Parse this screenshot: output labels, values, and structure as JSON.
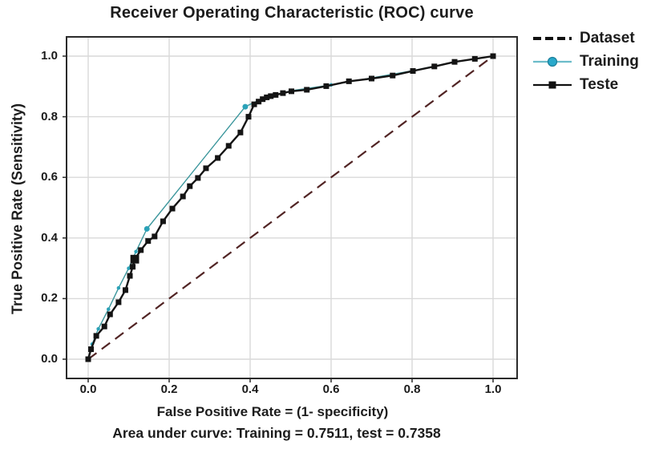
{
  "title": "Receiver Operating Characteristic (ROC) curve",
  "caption": "Area under curve: Training = 0.7511, test = 0.7358",
  "axes": {
    "xlabel": "False Positive Rate = (1- specificity)",
    "ylabel": "True Positive Rate (Sensitivity)",
    "x_ticks": [
      "0.0",
      "0.2",
      "0.4",
      "0.6",
      "0.8",
      "1.0"
    ],
    "x_tick_values": [
      0,
      0.2,
      0.4,
      0.6,
      0.8,
      1.0
    ],
    "y_ticks": [
      "0.0",
      "0.2",
      "0.4",
      "0.6",
      "0.8",
      "1.0"
    ],
    "y_tick_values": [
      0,
      0.2,
      0.4,
      0.6,
      0.8,
      1.0
    ],
    "grid_color": "#d9d9d9",
    "spine_color": "#2b2b2b"
  },
  "legend": {
    "items": [
      {
        "label": "Dataset",
        "swatch": "dashed",
        "line_color": "#111111"
      },
      {
        "label": "Training",
        "swatch": "circle",
        "line_color": "#6bbcca",
        "marker_fill": "#29a9cb",
        "marker_stroke": "#1d7f9a"
      },
      {
        "label": "Teste",
        "swatch": "square",
        "line_color": "#111111",
        "marker_fill": "#111111"
      }
    ]
  },
  "chart_data": {
    "type": "line",
    "title": "Receiver Operating Characteristic (ROC) curve",
    "xlabel": "False Positive Rate = (1- specificity)",
    "ylabel": "True Positive Rate (Sensitivity)",
    "xlim": [
      -0.05,
      1.06
    ],
    "ylim": [
      -0.06,
      1.06
    ],
    "grid": true,
    "legend_position": "top-right",
    "auc": {
      "training": 0.7511,
      "test": 0.7358
    },
    "series": [
      {
        "name": "Dataset",
        "color": "#512424",
        "width": 2.2,
        "dash": "13 8",
        "marker": "none",
        "points": [
          [
            0,
            0
          ],
          [
            1,
            1
          ]
        ]
      },
      {
        "name": "Training",
        "color": "#3b969c",
        "width": 1.4,
        "marker": "circle",
        "marker_size": 4.5,
        "marker_fill": "#2ba2b8",
        "emphasis": [
          7,
          8
        ],
        "points": [
          [
            0.0,
            0.0
          ],
          [
            0.01,
            0.05
          ],
          [
            0.025,
            0.1
          ],
          [
            0.05,
            0.165
          ],
          [
            0.075,
            0.235
          ],
          [
            0.1,
            0.3
          ],
          [
            0.118,
            0.355
          ],
          [
            0.145,
            0.43
          ],
          [
            0.388,
            0.833
          ],
          [
            0.43,
            0.86
          ],
          [
            0.465,
            0.873
          ],
          [
            0.502,
            0.886
          ],
          [
            0.6,
            0.905
          ],
          [
            0.7,
            0.928
          ],
          [
            0.802,
            0.952
          ],
          [
            0.905,
            0.981
          ],
          [
            1.0,
            1.0
          ]
        ]
      },
      {
        "name": "Teste",
        "color": "#141414",
        "width": 2.4,
        "marker": "square",
        "marker_size": 7,
        "marker_fill": "#141414",
        "emphasis": [
          9
        ],
        "points": [
          [
            0.0,
            0.0
          ],
          [
            0.007,
            0.033
          ],
          [
            0.02,
            0.077
          ],
          [
            0.04,
            0.108
          ],
          [
            0.054,
            0.148
          ],
          [
            0.075,
            0.188
          ],
          [
            0.092,
            0.228
          ],
          [
            0.103,
            0.275
          ],
          [
            0.11,
            0.305
          ],
          [
            0.115,
            0.33
          ],
          [
            0.13,
            0.36
          ],
          [
            0.148,
            0.39
          ],
          [
            0.164,
            0.405
          ],
          [
            0.185,
            0.455
          ],
          [
            0.208,
            0.497
          ],
          [
            0.234,
            0.537
          ],
          [
            0.251,
            0.571
          ],
          [
            0.271,
            0.598
          ],
          [
            0.291,
            0.63
          ],
          [
            0.32,
            0.664
          ],
          [
            0.347,
            0.704
          ],
          [
            0.376,
            0.748
          ],
          [
            0.396,
            0.8
          ],
          [
            0.41,
            0.841
          ],
          [
            0.421,
            0.85
          ],
          [
            0.431,
            0.858
          ],
          [
            0.441,
            0.864
          ],
          [
            0.451,
            0.868
          ],
          [
            0.463,
            0.872
          ],
          [
            0.481,
            0.878
          ],
          [
            0.502,
            0.884
          ],
          [
            0.54,
            0.889
          ],
          [
            0.588,
            0.901
          ],
          [
            0.644,
            0.917
          ],
          [
            0.7,
            0.926
          ],
          [
            0.752,
            0.936
          ],
          [
            0.802,
            0.951
          ],
          [
            0.855,
            0.966
          ],
          [
            0.905,
            0.981
          ],
          [
            0.955,
            0.991
          ],
          [
            1.0,
            1.0
          ]
        ]
      }
    ]
  }
}
